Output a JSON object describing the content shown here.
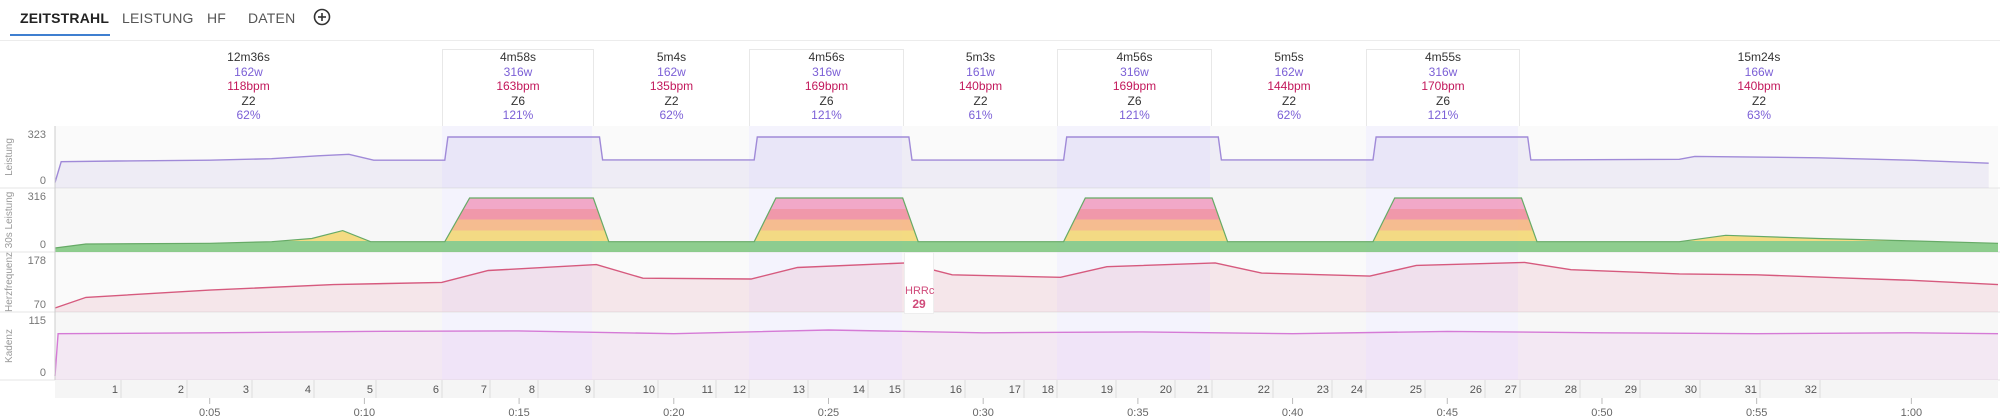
{
  "tabs": [
    {
      "label": "ZEITSTRAHL",
      "active": true
    },
    {
      "label": "LEISTUNG",
      "active": false
    },
    {
      "label": "HF",
      "active": false
    },
    {
      "label": "DATEN",
      "active": false
    }
  ],
  "add_icon": "plus-circle-icon",
  "intervals": [
    {
      "time": "12m36s",
      "watts": "162w",
      "bpm": "118bpm",
      "zone": "Z2",
      "pct": "62%",
      "work": false
    },
    {
      "time": "4m58s",
      "watts": "316w",
      "bpm": "163bpm",
      "zone": "Z6",
      "pct": "121%",
      "work": true
    },
    {
      "time": "5m4s",
      "watts": "162w",
      "bpm": "135bpm",
      "zone": "Z2",
      "pct": "62%",
      "work": false
    },
    {
      "time": "4m56s",
      "watts": "316w",
      "bpm": "169bpm",
      "zone": "Z6",
      "pct": "121%",
      "work": true
    },
    {
      "time": "5m3s",
      "watts": "161w",
      "bpm": "140bpm",
      "zone": "Z2",
      "pct": "61%",
      "work": false
    },
    {
      "time": "4m56s",
      "watts": "316w",
      "bpm": "169bpm",
      "zone": "Z6",
      "pct": "121%",
      "work": true
    },
    {
      "time": "5m5s",
      "watts": "162w",
      "bpm": "144bpm",
      "zone": "Z2",
      "pct": "62%",
      "work": false
    },
    {
      "time": "4m55s",
      "watts": "316w",
      "bpm": "170bpm",
      "zone": "Z6",
      "pct": "121%",
      "work": true
    },
    {
      "time": "15m24s",
      "watts": "166w",
      "bpm": "140bpm",
      "zone": "Z2",
      "pct": "63%",
      "work": false
    }
  ],
  "panels": {
    "leistung": {
      "label": "Leistung",
      "max": "323",
      "min": "0"
    },
    "leistung30": {
      "label": "30s Leistung",
      "max": "316",
      "min": "0"
    },
    "herzfrequenz": {
      "label": "Herzfrequenz",
      "max": "178",
      "min": "70"
    },
    "kadenz": {
      "label": "Kadenz",
      "max": "115",
      "min": "0"
    }
  },
  "hrrc": {
    "label": "HRRc",
    "value": "29"
  },
  "laps": [
    "1",
    "2",
    "3",
    "4",
    "5",
    "6",
    "7",
    "8",
    "9",
    "10",
    "11",
    "12",
    "13",
    "14",
    "15",
    "16",
    "17",
    "18",
    "19",
    "20",
    "21",
    "22",
    "23",
    "24",
    "25",
    "26",
    "27",
    "28",
    "29",
    "30",
    "31",
    "32"
  ],
  "time_ticks": [
    "0:05",
    "0:10",
    "0:15",
    "0:20",
    "0:25",
    "0:30",
    "0:35",
    "0:40",
    "0:45",
    "0:50",
    "0:55",
    "1:00"
  ],
  "chart_data": {
    "type": "line",
    "x_unit": "minutes",
    "xlim": [
      0,
      62.8
    ],
    "series": [
      {
        "name": "Leistung",
        "ylim": [
          0,
          323
        ],
        "points": [
          [
            0,
            10
          ],
          [
            0.2,
            150
          ],
          [
            2,
            155
          ],
          [
            5,
            160
          ],
          [
            7,
            170
          ],
          [
            8.5,
            190
          ],
          [
            9.5,
            200
          ],
          [
            10.3,
            160
          ],
          [
            12.6,
            160
          ],
          [
            12.7,
            316
          ],
          [
            17.6,
            316
          ],
          [
            17.7,
            162
          ],
          [
            22.6,
            162
          ],
          [
            22.7,
            316
          ],
          [
            27.6,
            316
          ],
          [
            27.7,
            161
          ],
          [
            32.6,
            161
          ],
          [
            32.7,
            316
          ],
          [
            37.6,
            316
          ],
          [
            37.7,
            162
          ],
          [
            42.6,
            162
          ],
          [
            42.7,
            316
          ],
          [
            47.6,
            316
          ],
          [
            47.7,
            162
          ],
          [
            52.5,
            166
          ],
          [
            53,
            186
          ],
          [
            57,
            176
          ],
          [
            60,
            160
          ],
          [
            62.5,
            140
          ]
        ]
      },
      {
        "name": "30s Leistung",
        "ylim": [
          0,
          316
        ],
        "points": [
          [
            0,
            0
          ],
          [
            1,
            25
          ],
          [
            5,
            30
          ],
          [
            7,
            40
          ],
          [
            8.3,
            60
          ],
          [
            9.3,
            110
          ],
          [
            10.2,
            40
          ],
          [
            12.6,
            40
          ],
          [
            13.4,
            316
          ],
          [
            17.4,
            316
          ],
          [
            17.9,
            40
          ],
          [
            22.6,
            40
          ],
          [
            23.3,
            316
          ],
          [
            27.4,
            316
          ],
          [
            27.9,
            40
          ],
          [
            32.6,
            40
          ],
          [
            33.3,
            316
          ],
          [
            37.4,
            316
          ],
          [
            37.9,
            40
          ],
          [
            42.6,
            40
          ],
          [
            43.3,
            316
          ],
          [
            47.4,
            316
          ],
          [
            47.9,
            40
          ],
          [
            52.5,
            40
          ],
          [
            54,
            80
          ],
          [
            57,
            60
          ],
          [
            60,
            45
          ],
          [
            62.8,
            30
          ]
        ]
      },
      {
        "name": "Herzfrequenz",
        "ylim": [
          70,
          178
        ],
        "points": [
          [
            0,
            70
          ],
          [
            1,
            95
          ],
          [
            5,
            112
          ],
          [
            9,
            125
          ],
          [
            12.5,
            130
          ],
          [
            14,
            158
          ],
          [
            17.5,
            172
          ],
          [
            19,
            140
          ],
          [
            22.5,
            138
          ],
          [
            24,
            165
          ],
          [
            27.5,
            176
          ],
          [
            29,
            148
          ],
          [
            32.5,
            142
          ],
          [
            34,
            167
          ],
          [
            37.5,
            176
          ],
          [
            39,
            152
          ],
          [
            42.5,
            145
          ],
          [
            44,
            170
          ],
          [
            47.5,
            177
          ],
          [
            49,
            160
          ],
          [
            52.5,
            150
          ],
          [
            55,
            148
          ],
          [
            58,
            140
          ],
          [
            60,
            135
          ],
          [
            62.8,
            125
          ]
        ]
      },
      {
        "name": "Kadenz",
        "ylim": [
          0,
          115
        ],
        "points": [
          [
            0,
            0
          ],
          [
            0.1,
            90
          ],
          [
            5,
            92
          ],
          [
            10,
            95
          ],
          [
            15,
            96
          ],
          [
            20,
            90
          ],
          [
            25,
            98
          ],
          [
            30,
            92
          ],
          [
            35,
            94
          ],
          [
            40,
            90
          ],
          [
            45,
            95
          ],
          [
            50,
            92
          ],
          [
            55,
            90
          ],
          [
            60,
            92
          ],
          [
            62.8,
            90
          ]
        ]
      }
    ],
    "laps": 32,
    "time_ticks": [
      "0:05",
      "0:10",
      "0:15",
      "0:20",
      "0:25",
      "0:30",
      "0:35",
      "0:40",
      "0:45",
      "0:50",
      "0:55",
      "1:00"
    ]
  },
  "colors": {
    "accent": "#3f7fd0",
    "power": "#a08ad8",
    "hr": "#d65a7e",
    "cadence": "#d57ad6",
    "zone_green": "#6bbf6b",
    "zone_yellow": "#f3d25b",
    "zone_orange": "#f5a96b",
    "zone_red": "#ef7a8e",
    "zone_pink": "#f08fb7"
  }
}
